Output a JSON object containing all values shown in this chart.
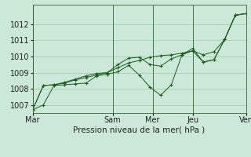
{
  "background_color": "#cce8d8",
  "grid_color": "#99ccaa",
  "line_color": "#1a5c1a",
  "marker_color": "#1a5c1a",
  "xlabel": "Pression niveau de la mer( hPa )",
  "ylim": [
    1006.5,
    1013.2
  ],
  "yticks": [
    1007,
    1008,
    1009,
    1010,
    1011,
    1012
  ],
  "day_labels": [
    "Mar",
    "Sam",
    "Mer",
    "Jeu",
    "Ven"
  ],
  "day_positions": [
    0,
    0.375,
    0.5625,
    0.75,
    1.0
  ],
  "series": [
    [
      0.0,
      1006.7,
      1007.0,
      1008.2,
      1008.25,
      1008.3,
      1008.35,
      1008.8,
      1008.9,
      1009.05,
      1009.45,
      1008.85,
      1008.1,
      1007.6,
      1008.25,
      1010.1,
      1010.35,
      1009.65,
      1009.8,
      1011.05,
      1012.55,
      1012.65
    ],
    [
      0.0,
      1006.7,
      1008.2,
      1008.25,
      1008.4,
      1008.6,
      1008.8,
      1008.95,
      1009.0,
      1009.5,
      1009.9,
      1009.95,
      1009.5,
      1009.4,
      1009.85,
      1010.1,
      1010.5,
      1009.65,
      1009.8,
      1011.05,
      1012.55,
      1012.65
    ],
    [
      0.0,
      1006.7,
      1008.2,
      1008.25,
      1008.35,
      1008.55,
      1008.7,
      1008.85,
      1009.0,
      1009.3,
      1009.6,
      1009.75,
      1009.95,
      1010.05,
      1010.1,
      1010.2,
      1010.35,
      1010.1,
      1010.3,
      1011.05,
      1012.55,
      1012.65
    ]
  ],
  "figsize": [
    3.2,
    2.0
  ],
  "dpi": 100,
  "tick_label_fontsize": 7,
  "axis_label_fontsize": 7.5
}
